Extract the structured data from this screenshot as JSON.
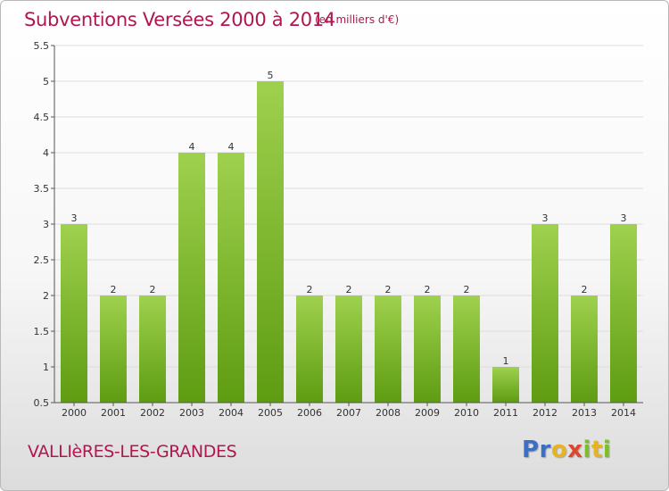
{
  "title": "Subventions Versées 2000 à 2014",
  "subtitle": "(en milliers d'€)",
  "town": "VALLIèRES-LES-GRANDES",
  "brand": {
    "letters": [
      "P",
      "r",
      "o",
      "x",
      "i",
      "t",
      "i"
    ],
    "colors": [
      "#3a6fc4",
      "#3a6fc4",
      "#e8b320",
      "#e0462c",
      "#7cbf2a",
      "#e8b320",
      "#7cbf2a"
    ]
  },
  "colors": {
    "title": "#b0174f",
    "bar_light": "#9fd14e",
    "bar_dark": "#5e9c12",
    "axis": "#555555",
    "grid": "#dddddd"
  },
  "chart_data": {
    "type": "bar",
    "categories": [
      "2000",
      "2001",
      "2002",
      "2003",
      "2004",
      "2005",
      "2006",
      "2007",
      "2008",
      "2009",
      "2010",
      "2011",
      "2012",
      "2013",
      "2014"
    ],
    "values": [
      3,
      2,
      2,
      4,
      4,
      5,
      2,
      2,
      2,
      2,
      2,
      1,
      3,
      2,
      3
    ],
    "title": "Subventions Versées 2000 à 2014",
    "subtitle": "(en milliers d'€)",
    "xlabel": "",
    "ylabel": "",
    "ylim": [
      0.5,
      5.5
    ],
    "yticks": [
      "0.5",
      "1",
      "1.5",
      "2",
      "2.5",
      "3",
      "3.5",
      "4",
      "4.5",
      "5",
      "5.5"
    ],
    "grid": "horizontal"
  }
}
